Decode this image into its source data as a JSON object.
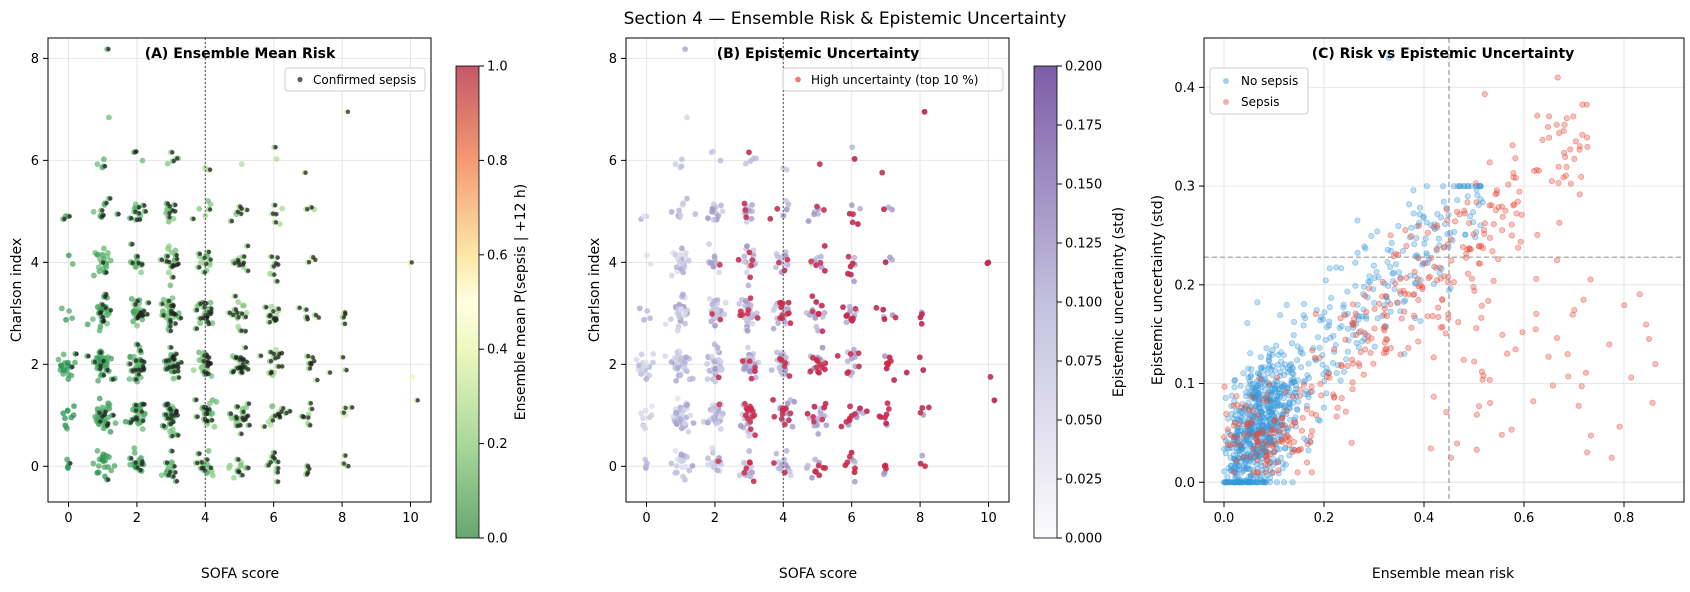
{
  "figure": {
    "title": "Section 4 — Ensemble Risk & Epistemic Uncertainty"
  },
  "chart_data": [
    {
      "type": "scatter",
      "title": "(A) Ensemble Mean Risk",
      "xlabel": "SOFA score",
      "ylabel": "Charlson index",
      "xlim": [
        -0.6,
        10.6
      ],
      "ylim": [
        -0.7,
        8.4
      ],
      "xticks": [
        "0",
        "2",
        "4",
        "6",
        "8",
        "10"
      ],
      "yticks": [
        "0",
        "2",
        "4",
        "6",
        "8"
      ],
      "grid": true,
      "vline_x": 4,
      "legend": {
        "placement": "top-right",
        "entries": [
          "Confirmed sepsis"
        ]
      },
      "colorbar": {
        "label": "Ensemble mean P(sepsis | +12 h)",
        "range": [
          0,
          1
        ],
        "ticks": [
          "0.0",
          "0.2",
          "0.4",
          "0.6",
          "0.8",
          "1.0"
        ],
        "colormap": "RdYlGn_r"
      },
      "points_note": "jittered cloud at integer SOFA x Charlson cells",
      "cells": [
        {
          "sofa": 0,
          "charlson": 0,
          "n": 4
        },
        {
          "sofa": 0,
          "charlson": 1,
          "n": 10
        },
        {
          "sofa": 0,
          "charlson": 2,
          "n": 18
        },
        {
          "sofa": 0,
          "charlson": 3,
          "n": 4
        },
        {
          "sofa": 0,
          "charlson": 4,
          "n": 2
        },
        {
          "sofa": 0,
          "charlson": 5,
          "n": 3
        },
        {
          "sofa": 1,
          "charlson": 0,
          "n": 20
        },
        {
          "sofa": 1,
          "charlson": 1,
          "n": 38
        },
        {
          "sofa": 1,
          "charlson": 2,
          "n": 45
        },
        {
          "sofa": 1,
          "charlson": 3,
          "n": 35
        },
        {
          "sofa": 1,
          "charlson": 4,
          "n": 22
        },
        {
          "sofa": 1,
          "charlson": 5,
          "n": 10
        },
        {
          "sofa": 1,
          "charlson": 6,
          "n": 4
        },
        {
          "sofa": 1,
          "charlson": 7,
          "n": 1
        },
        {
          "sofa": 1,
          "charlson": 8,
          "n": 1
        },
        {
          "sofa": 2,
          "charlson": 0,
          "n": 18
        },
        {
          "sofa": 2,
          "charlson": 1,
          "n": 30
        },
        {
          "sofa": 2,
          "charlson": 2,
          "n": 40
        },
        {
          "sofa": 2,
          "charlson": 3,
          "n": 30
        },
        {
          "sofa": 2,
          "charlson": 4,
          "n": 16
        },
        {
          "sofa": 2,
          "charlson": 5,
          "n": 12
        },
        {
          "sofa": 2,
          "charlson": 6,
          "n": 3
        },
        {
          "sofa": 3,
          "charlson": 0,
          "n": 16
        },
        {
          "sofa": 3,
          "charlson": 1,
          "n": 32
        },
        {
          "sofa": 3,
          "charlson": 2,
          "n": 36
        },
        {
          "sofa": 3,
          "charlson": 3,
          "n": 40
        },
        {
          "sofa": 3,
          "charlson": 4,
          "n": 20
        },
        {
          "sofa": 3,
          "charlson": 5,
          "n": 12
        },
        {
          "sofa": 3,
          "charlson": 6,
          "n": 5
        },
        {
          "sofa": 4,
          "charlson": 0,
          "n": 16
        },
        {
          "sofa": 4,
          "charlson": 1,
          "n": 28
        },
        {
          "sofa": 4,
          "charlson": 2,
          "n": 30
        },
        {
          "sofa": 4,
          "charlson": 3,
          "n": 28
        },
        {
          "sofa": 4,
          "charlson": 4,
          "n": 14
        },
        {
          "sofa": 4,
          "charlson": 5,
          "n": 6
        },
        {
          "sofa": 4,
          "charlson": 6,
          "n": 2
        },
        {
          "sofa": 5,
          "charlson": 0,
          "n": 12
        },
        {
          "sofa": 5,
          "charlson": 1,
          "n": 24
        },
        {
          "sofa": 5,
          "charlson": 2,
          "n": 26
        },
        {
          "sofa": 5,
          "charlson": 3,
          "n": 18
        },
        {
          "sofa": 5,
          "charlson": 4,
          "n": 12
        },
        {
          "sofa": 5,
          "charlson": 5,
          "n": 7
        },
        {
          "sofa": 5,
          "charlson": 6,
          "n": 1
        },
        {
          "sofa": 6,
          "charlson": 0,
          "n": 10
        },
        {
          "sofa": 6,
          "charlson": 1,
          "n": 16
        },
        {
          "sofa": 6,
          "charlson": 2,
          "n": 16
        },
        {
          "sofa": 6,
          "charlson": 3,
          "n": 14
        },
        {
          "sofa": 6,
          "charlson": 4,
          "n": 8
        },
        {
          "sofa": 6,
          "charlson": 5,
          "n": 6
        },
        {
          "sofa": 6,
          "charlson": 6,
          "n": 2
        },
        {
          "sofa": 7,
          "charlson": 0,
          "n": 5
        },
        {
          "sofa": 7,
          "charlson": 1,
          "n": 8
        },
        {
          "sofa": 7,
          "charlson": 2,
          "n": 8
        },
        {
          "sofa": 7,
          "charlson": 3,
          "n": 6
        },
        {
          "sofa": 7,
          "charlson": 4,
          "n": 3
        },
        {
          "sofa": 7,
          "charlson": 5,
          "n": 3
        },
        {
          "sofa": 7,
          "charlson": 6,
          "n": 1
        },
        {
          "sofa": 8,
          "charlson": 0,
          "n": 3
        },
        {
          "sofa": 8,
          "charlson": 1,
          "n": 4
        },
        {
          "sofa": 8,
          "charlson": 2,
          "n": 3
        },
        {
          "sofa": 8,
          "charlson": 3,
          "n": 4
        },
        {
          "sofa": 8,
          "charlson": 7,
          "n": 1
        },
        {
          "sofa": 10,
          "charlson": 1,
          "n": 1
        },
        {
          "sofa": 10,
          "charlson": 2,
          "n": 1
        },
        {
          "sofa": 10,
          "charlson": 4,
          "n": 2
        }
      ]
    },
    {
      "type": "scatter",
      "title": "(B) Epistemic Uncertainty",
      "xlabel": "SOFA score",
      "ylabel": "Charlson index",
      "xlim": [
        -0.6,
        10.6
      ],
      "ylim": [
        -0.7,
        8.4
      ],
      "xticks": [
        "0",
        "2",
        "4",
        "6",
        "8",
        "10"
      ],
      "yticks": [
        "0",
        "2",
        "4",
        "6",
        "8"
      ],
      "grid": true,
      "vline_x": 4,
      "legend": {
        "placement": "top-right",
        "entries": [
          "High uncertainty (top 10 %)"
        ]
      },
      "colorbar": {
        "label": "Epistemic uncertainty (std)",
        "range": [
          0,
          0.2
        ],
        "ticks": [
          "0.000",
          "0.025",
          "0.050",
          "0.075",
          "0.100",
          "0.125",
          "0.150",
          "0.175",
          "0.200"
        ],
        "colormap": "Purples"
      }
    },
    {
      "type": "scatter",
      "title": "(C) Risk vs Epistemic Uncertainty",
      "xlabel": "Ensemble mean risk",
      "ylabel": "Epistemic uncertainty (std)",
      "xlim": [
        -0.04,
        0.92
      ],
      "ylim": [
        -0.02,
        0.45
      ],
      "xticks": [
        "0.0",
        "0.2",
        "0.4",
        "0.6",
        "0.8"
      ],
      "yticks": [
        "0.0",
        "0.1",
        "0.2",
        "0.3",
        "0.4"
      ],
      "grid": true,
      "vline_x": 0.45,
      "hline_y": 0.228,
      "legend": {
        "placement": "top-left",
        "entries": [
          "No sepsis",
          "Sepsis"
        ]
      },
      "series": [
        {
          "name": "No sepsis",
          "color": "#3498db",
          "n": 900,
          "risk_range": [
            0.0,
            0.56
          ],
          "std_range": [
            0.0,
            0.43
          ]
        },
        {
          "name": "Sepsis",
          "color": "#e74c3c",
          "n": 420,
          "risk_range": [
            0.03,
            0.88
          ],
          "std_range": [
            0.01,
            0.41
          ]
        }
      ]
    }
  ]
}
